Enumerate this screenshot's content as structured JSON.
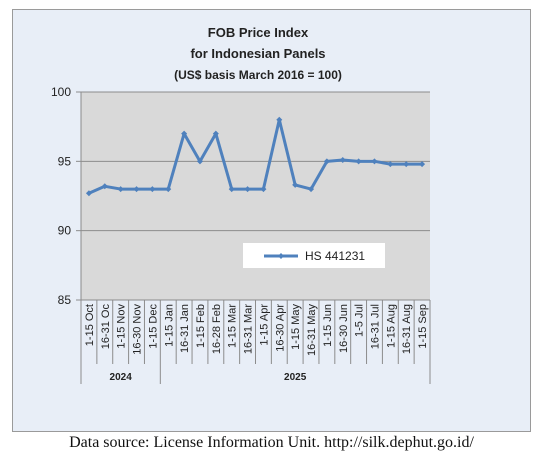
{
  "chart_data": {
    "type": "line",
    "title": [
      "FOB Price Index",
      "for Indonesian Panels",
      "(US$ basis March 2016 = 100)"
    ],
    "categories": [
      "1-15 Oct",
      "16-31 Oc",
      "1-15 Nov",
      "16-30 Nov",
      "1-15 Dec",
      "1-15 Jan",
      "16-31 Jan",
      "1-15 Feb",
      "16-28 Feb",
      "1-15 Mar",
      "16-31 Mar",
      "1-15 Apr",
      "16-30 Apr",
      "1-15 May",
      "16-31 May",
      "1-15 Jun",
      "16-30 Jun",
      "1-5 Jul",
      "16-31 Jul",
      "1-15 Aug",
      "16-31 Aug",
      "1-15 Sep"
    ],
    "groups": [
      {
        "label": "2024",
        "start": 0,
        "end": 4
      },
      {
        "label": "2025",
        "start": 5,
        "end": 21
      }
    ],
    "series": [
      {
        "name": "HS 441231",
        "color": "#4f81bd",
        "values": [
          92.7,
          93.2,
          93.0,
          93.0,
          93.0,
          93.0,
          97.0,
          95.0,
          97.0,
          93.0,
          93.0,
          93.0,
          98.0,
          93.3,
          93.0,
          95.0,
          95.1,
          95.0,
          95.0,
          94.8,
          94.8,
          94.8
        ]
      }
    ],
    "ylim": [
      85,
      100
    ],
    "yticks": [
      85,
      90,
      95,
      100
    ],
    "grid": true,
    "legend_position": "inside-lower-right",
    "plot_background": "#d9d9d9"
  },
  "source_text": "Data source: License Information Unit. http://silk.dephut.go.id/"
}
